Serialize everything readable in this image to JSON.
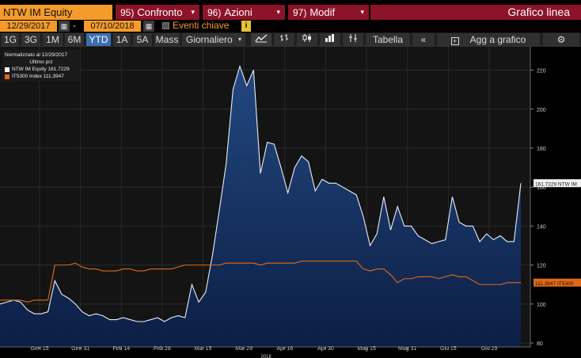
{
  "header": {
    "ticker": "NTW IM Equity",
    "menu": [
      {
        "num": "95)",
        "label": "Confronto"
      },
      {
        "num": "96)",
        "label": "Azioni"
      },
      {
        "num": "97)",
        "label": "Modif"
      }
    ],
    "title": "Grafico linea"
  },
  "dates": {
    "start": "12/29/2017",
    "separator": "-",
    "end": "07/10/2018",
    "events_label": "Eventi chiave"
  },
  "toolbar": {
    "periods": [
      "1G",
      "3G",
      "1M",
      "6M",
      "YTD",
      "1A",
      "5A",
      "Mass"
    ],
    "active_period": "YTD",
    "frequency": "Giornaliero",
    "table_label": "Tabella",
    "collapse_label": "«",
    "add_label": "Agg a grafico"
  },
  "legend": {
    "normalized": "Normalizzato al 12/29/2017",
    "last_price": "Ultimo prz",
    "series1": "NTW IM Equity 161.7229",
    "series2": "IT5300 Index 111.3947"
  },
  "colors": {
    "series1_line": "#e8eef8",
    "series1_fill": "#0f2a55",
    "series2_line": "#e06a1a",
    "orange": "#f59b2b",
    "maroon": "#8c1328"
  },
  "chart_data": {
    "type": "area",
    "x_labels": [
      "Gen 15",
      "Gen 31",
      "Feb 14",
      "Feb 28",
      "Mar 15",
      "Mar 29",
      "Apr 16",
      "Apr 30",
      "Mag 15",
      "Mag 31",
      "Giu 15",
      "Giu 29"
    ],
    "year_label": "2018",
    "ylim": [
      78,
      232
    ],
    "y_ticks": [
      80,
      100,
      120,
      140,
      160,
      180,
      200,
      220
    ],
    "grid": true,
    "series": [
      {
        "name": "NTW IM Equity",
        "last_label": "161.7229 NTW IM",
        "values": [
          100,
          101,
          102,
          101,
          97,
          95,
          95,
          96,
          112,
          105,
          103,
          100,
          96,
          94,
          95,
          94,
          92,
          92,
          93,
          92,
          91,
          91,
          92,
          93,
          91,
          93,
          94,
          93,
          110,
          101,
          106,
          125,
          148,
          172,
          210,
          222,
          212,
          220,
          167,
          183,
          182,
          170,
          157,
          170,
          176,
          173,
          158,
          164,
          162,
          162,
          160,
          158,
          156,
          145,
          130,
          136,
          155,
          138,
          150,
          140,
          140,
          135,
          133,
          131,
          132,
          133,
          155,
          142,
          140,
          140,
          132,
          136,
          133,
          135,
          132,
          132,
          162
        ]
      },
      {
        "name": "IT5300 Index",
        "last_label": "111.3947 IT5300",
        "values": [
          102,
          102,
          102,
          102,
          101,
          102,
          102,
          102,
          120,
          120,
          120,
          121,
          119,
          118,
          118,
          117,
          117,
          117,
          118,
          118,
          117,
          117,
          118,
          118,
          118,
          118,
          119,
          120,
          120,
          120,
          120,
          120,
          120,
          121,
          121,
          121,
          121,
          121,
          120,
          121,
          121,
          121,
          121,
          121,
          122,
          122,
          122,
          122,
          122,
          122,
          122,
          122,
          122,
          118,
          117,
          118,
          118,
          115,
          111,
          113,
          113,
          114,
          114,
          114,
          113,
          114,
          115,
          114,
          114,
          112,
          110,
          110,
          110,
          110,
          111,
          111,
          111
        ]
      }
    ]
  }
}
